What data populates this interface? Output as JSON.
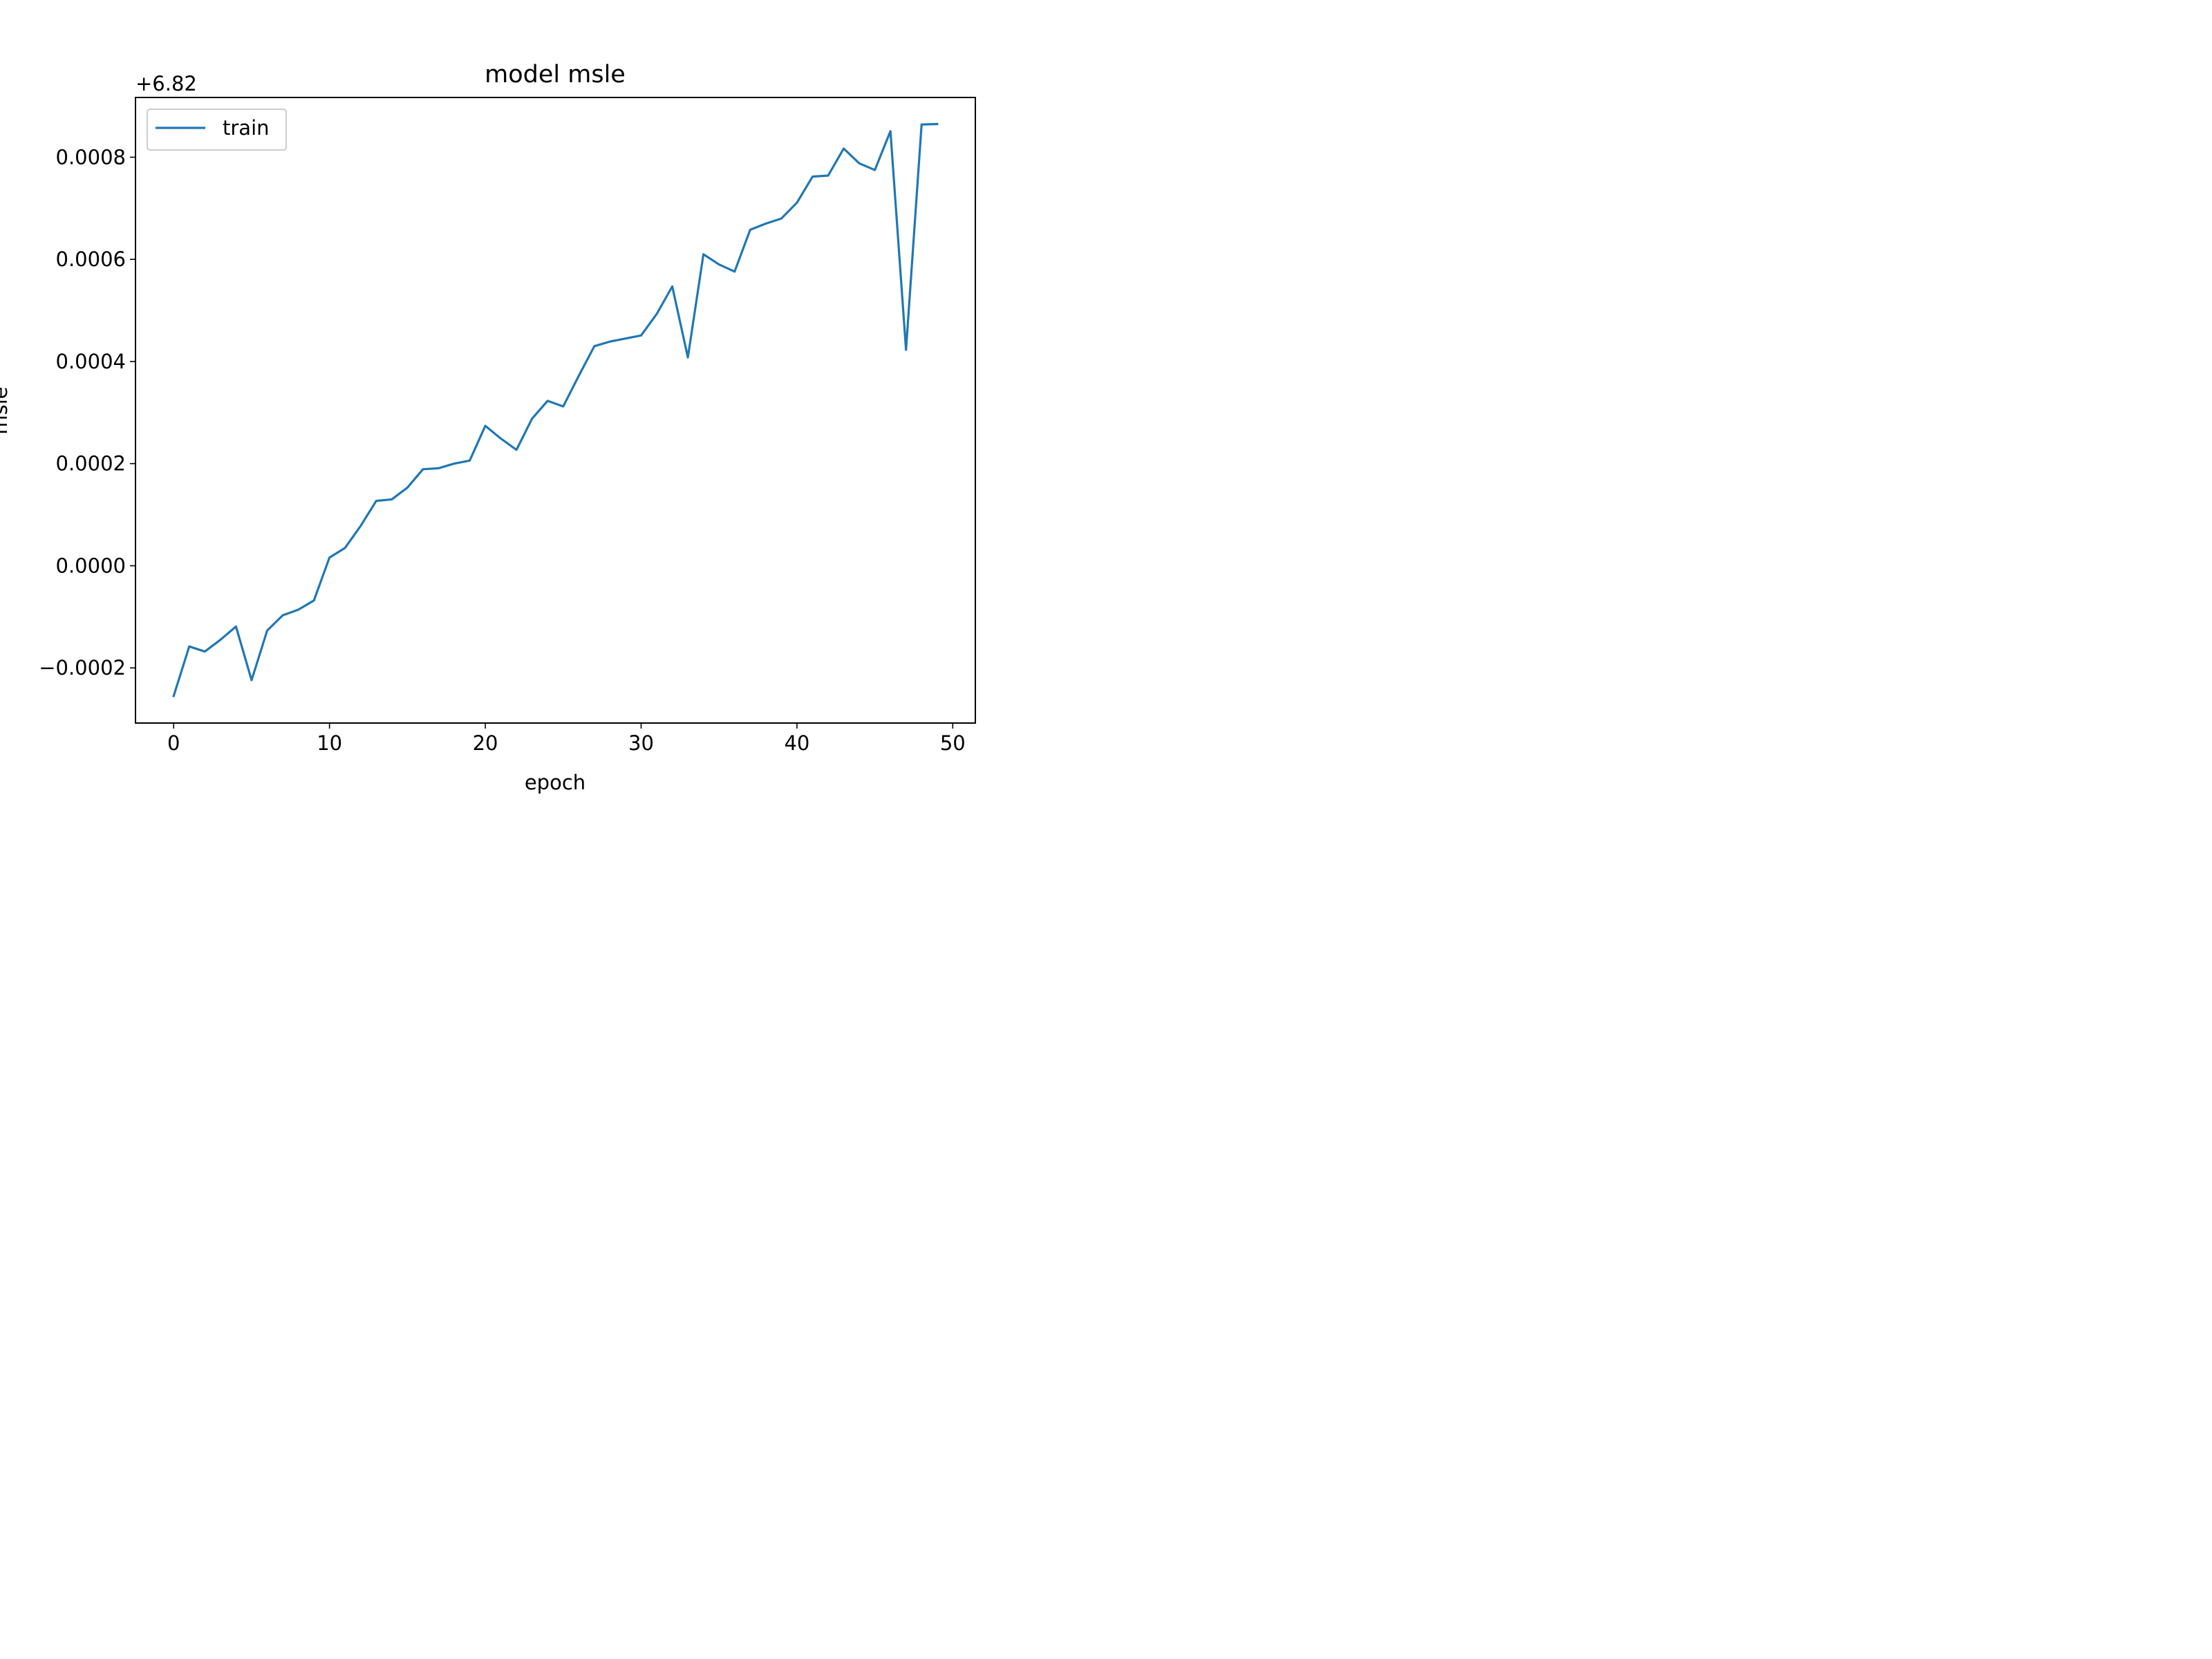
{
  "chart_data": {
    "type": "line",
    "title": "model msle",
    "xlabel": "epoch",
    "ylabel": "msle",
    "offset_label": "+6.82",
    "xlim": [
      -2.45,
      51.45
    ],
    "ylim": [
      -0.000308,
      0.000917
    ],
    "x_ticks": [
      0,
      10,
      20,
      30,
      40,
      50
    ],
    "x_tick_labels": [
      "0",
      "10",
      "20",
      "30",
      "40",
      "50"
    ],
    "y_ticks": [
      -0.0002,
      0.0,
      0.0002,
      0.0004,
      0.0006,
      0.0008
    ],
    "y_tick_labels": [
      "−0.0002",
      "0.0000",
      "0.0002",
      "0.0004",
      "0.0006",
      "0.0008"
    ],
    "legend": {
      "position": "top-left",
      "entries": [
        "train"
      ]
    },
    "grid": false,
    "series": [
      {
        "name": "train",
        "color": "#1f77b4",
        "x": [
          0,
          1,
          2,
          3,
          4,
          5,
          6,
          7,
          8,
          9,
          10,
          11,
          12,
          13,
          14,
          15,
          16,
          17,
          18,
          19,
          20,
          21,
          22,
          23,
          24,
          25,
          26,
          27,
          28,
          29,
          30,
          31,
          32,
          33,
          34,
          35,
          36,
          37,
          38,
          39,
          40,
          41,
          42,
          43,
          44,
          45,
          46,
          47,
          48,
          49
        ],
        "y": [
          -0.000255,
          -0.000158,
          -0.000168,
          -0.000145,
          -0.000119,
          -0.000224,
          -0.000127,
          -9.7e-05,
          -8.6e-05,
          -6.8e-05,
          1.6e-05,
          3.5e-05,
          7.8e-05,
          0.000127,
          0.00013,
          0.000153,
          0.000189,
          0.000191,
          0.0002,
          0.000206,
          0.000274,
          0.000249,
          0.000227,
          0.000288,
          0.000323,
          0.000312,
          0.000372,
          0.00043,
          0.000439,
          0.000445,
          0.000451,
          0.000493,
          0.000547,
          0.000408,
          0.00061,
          0.00059,
          0.000576,
          0.000658,
          0.00067,
          0.00068,
          0.000711,
          0.000762,
          0.000764,
          0.000817,
          0.000788,
          0.000775,
          0.000851,
          0.000423,
          0.000864,
          0.000865
        ]
      }
    ]
  }
}
